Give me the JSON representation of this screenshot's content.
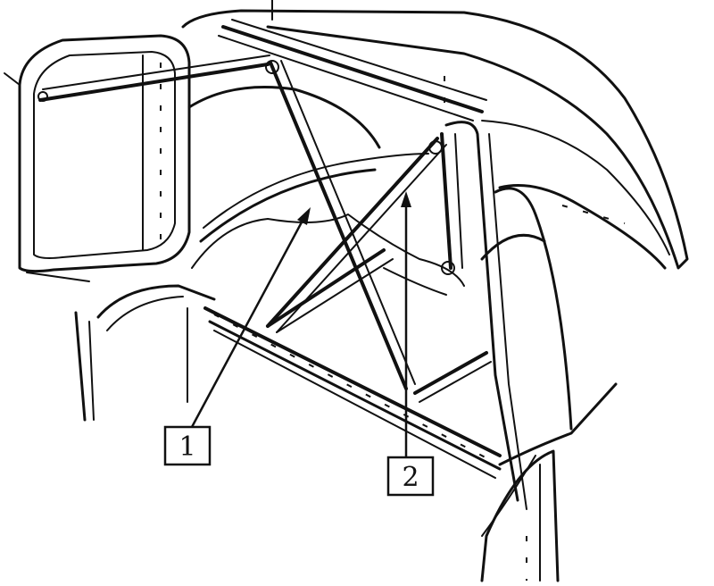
{
  "callouts": [
    {
      "id": "1",
      "label": "1"
    },
    {
      "id": "2",
      "label": "2"
    }
  ]
}
